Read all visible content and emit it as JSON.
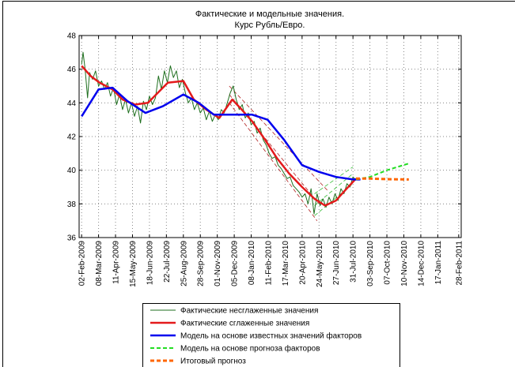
{
  "chart_data": {
    "type": "line",
    "title": [
      "Фактические и модельные значения.",
      "Курс Рубль/Евро."
    ],
    "xlim": [
      "2009-01-28",
      "2011-03-05"
    ],
    "xticks": [
      {
        "value": "2009-02-02",
        "label": "02-Feb-2009"
      },
      {
        "value": "2009-03-08",
        "label": "08-Mar-2009"
      },
      {
        "value": "2009-04-11",
        "label": "11-Apr-2009"
      },
      {
        "value": "2009-05-15",
        "label": "15-May-2009"
      },
      {
        "value": "2009-06-18",
        "label": "18-Jun-2009"
      },
      {
        "value": "2009-07-22",
        "label": "22-Jul-2009"
      },
      {
        "value": "2009-08-25",
        "label": "25-Aug-2009"
      },
      {
        "value": "2009-09-28",
        "label": "28-Sep-2009"
      },
      {
        "value": "2009-11-01",
        "label": "01-Nov-2009"
      },
      {
        "value": "2009-12-05",
        "label": "05-Dec-2009"
      },
      {
        "value": "2010-01-08",
        "label": "08-Jan-2010"
      },
      {
        "value": "2010-02-11",
        "label": "11-Feb-2010"
      },
      {
        "value": "2010-03-17",
        "label": "17-Mar-2010"
      },
      {
        "value": "2010-04-20",
        "label": "20-Apr-2010"
      },
      {
        "value": "2010-05-24",
        "label": "24-May-2010"
      },
      {
        "value": "2010-06-27",
        "label": "27-Jun-2010"
      },
      {
        "value": "2010-07-31",
        "label": "31-Jul-2010"
      },
      {
        "value": "2010-09-03",
        "label": "03-Sep-2010"
      },
      {
        "value": "2010-10-07",
        "label": "07-Oct-2010"
      },
      {
        "value": "2010-11-10",
        "label": "10-Nov-2010"
      },
      {
        "value": "2010-12-14",
        "label": "14-Dec-2010"
      },
      {
        "value": "2011-01-17",
        "label": "17-Jan-2011"
      },
      {
        "value": "2011-02-28",
        "label": "28-Feb-2011"
      }
    ],
    "ylim": [
      36,
      48
    ],
    "yticks": [
      36,
      38,
      40,
      42,
      44,
      46,
      48
    ],
    "grid": true,
    "legend": "bottom",
    "series": [
      {
        "name": "Фактические несглаженные значения",
        "color": "#1f6f1f",
        "linewidth": 1,
        "linestyle": "solid",
        "x": [
          "2009-02-02",
          "2009-02-05",
          "2009-02-09",
          "2009-02-14",
          "2009-02-18",
          "2009-02-24",
          "2009-03-02",
          "2009-03-08",
          "2009-03-14",
          "2009-03-20",
          "2009-03-26",
          "2009-04-01",
          "2009-04-07",
          "2009-04-13",
          "2009-04-19",
          "2009-04-25",
          "2009-05-01",
          "2009-05-07",
          "2009-05-13",
          "2009-05-19",
          "2009-05-25",
          "2009-05-31",
          "2009-06-06",
          "2009-06-12",
          "2009-06-18",
          "2009-06-24",
          "2009-06-30",
          "2009-07-06",
          "2009-07-12",
          "2009-07-18",
          "2009-07-24",
          "2009-07-30",
          "2009-08-05",
          "2009-08-11",
          "2009-08-17",
          "2009-08-23",
          "2009-08-29",
          "2009-09-04",
          "2009-09-10",
          "2009-09-16",
          "2009-09-22",
          "2009-09-28",
          "2009-10-04",
          "2009-10-10",
          "2009-10-16",
          "2009-10-22",
          "2009-10-28",
          "2009-11-03",
          "2009-11-09",
          "2009-11-15",
          "2009-11-21",
          "2009-11-27",
          "2009-12-03",
          "2009-12-09",
          "2009-12-15",
          "2009-12-21",
          "2009-12-27",
          "2010-01-02",
          "2010-01-08",
          "2010-01-14",
          "2010-01-20",
          "2010-01-26",
          "2010-02-01",
          "2010-02-07",
          "2010-02-13",
          "2010-02-19",
          "2010-02-25",
          "2010-03-03",
          "2010-03-09",
          "2010-03-15",
          "2010-03-21",
          "2010-03-27",
          "2010-04-02",
          "2010-04-08",
          "2010-04-14",
          "2010-04-20",
          "2010-04-26",
          "2010-05-02",
          "2010-05-08",
          "2010-05-14",
          "2010-05-20",
          "2010-05-26",
          "2010-06-01",
          "2010-06-07",
          "2010-06-13",
          "2010-06-19",
          "2010-06-25",
          "2010-07-01",
          "2010-07-07",
          "2010-07-13",
          "2010-07-19",
          "2010-07-25",
          "2010-07-31",
          "2010-08-06"
        ],
        "values": [
          46.3,
          47.0,
          46.0,
          44.3,
          45.8,
          45.4,
          45.9,
          45.0,
          45.3,
          44.8,
          45.2,
          44.4,
          44.9,
          43.9,
          44.5,
          43.6,
          44.2,
          43.4,
          44.0,
          43.2,
          43.8,
          42.8,
          44.1,
          43.6,
          44.4,
          43.9,
          44.3,
          45.6,
          44.8,
          45.9,
          45.2,
          46.2,
          45.5,
          45.9,
          44.9,
          45.4,
          44.6,
          44.0,
          44.3,
          43.6,
          44.0,
          43.4,
          43.7,
          43.0,
          43.5,
          42.9,
          43.3,
          43.0,
          43.6,
          43.4,
          44.0,
          44.6,
          45.0,
          44.2,
          43.6,
          43.9,
          43.1,
          43.4,
          42.7,
          42.9,
          42.2,
          42.5,
          41.8,
          41.5,
          41.0,
          40.7,
          40.8,
          40.3,
          40.1,
          39.8,
          39.5,
          39.6,
          39.1,
          38.9,
          38.7,
          38.4,
          38.6,
          38.0,
          38.9,
          37.4,
          38.6,
          37.9,
          38.3,
          37.8,
          38.4,
          38.0,
          38.6,
          38.2,
          38.9,
          38.6,
          39.2,
          39.0,
          39.6,
          39.4
        ]
      },
      {
        "name": "Фактические сглаженные значения",
        "color": "#e31a1c",
        "linewidth": 2.5,
        "linestyle": "solid",
        "x": [
          "2009-02-02",
          "2009-02-20",
          "2009-03-10",
          "2009-04-05",
          "2009-04-25",
          "2009-05-20",
          "2009-06-15",
          "2009-07-05",
          "2009-07-25",
          "2009-08-25",
          "2009-09-15",
          "2009-10-10",
          "2009-11-05",
          "2009-12-01",
          "2009-12-20",
          "2010-01-10",
          "2010-02-05",
          "2010-03-01",
          "2010-03-25",
          "2010-04-20",
          "2010-05-15",
          "2010-06-05",
          "2010-06-27",
          "2010-07-15",
          "2010-08-06"
        ],
        "values": [
          46.2,
          45.6,
          45.2,
          44.8,
          44.2,
          43.9,
          44.0,
          44.6,
          45.2,
          45.3,
          44.2,
          43.6,
          43.1,
          44.2,
          43.6,
          42.9,
          41.8,
          40.7,
          39.8,
          39.0,
          38.3,
          37.9,
          38.2,
          38.8,
          39.5
        ]
      },
      {
        "name": "Модель на основе известных значений факторов",
        "color": "#0000ee",
        "linewidth": 2.5,
        "linestyle": "solid",
        "x": [
          "2009-02-02",
          "2009-03-08",
          "2009-04-05",
          "2009-05-05",
          "2009-06-10",
          "2009-07-15",
          "2009-08-25",
          "2009-09-25",
          "2009-10-25",
          "2009-12-01",
          "2010-01-10",
          "2010-02-10",
          "2010-03-15",
          "2010-04-20",
          "2010-05-24",
          "2010-06-27",
          "2010-07-31",
          "2010-08-15"
        ],
        "values": [
          43.2,
          44.8,
          44.9,
          44.1,
          43.4,
          43.8,
          44.5,
          44.0,
          43.3,
          43.3,
          43.3,
          43.0,
          41.8,
          40.3,
          39.9,
          39.6,
          39.45,
          39.45
        ]
      },
      {
        "name": "Модель на основе прогноза факторов",
        "color": "#22dd22",
        "linewidth": 2,
        "linestyle": "dashed",
        "x": [
          "2010-08-06",
          "2010-09-03",
          "2010-10-07",
          "2010-11-20"
        ],
        "values": [
          39.45,
          39.6,
          40.0,
          40.4
        ]
      },
      {
        "name": "Итоговый прогноз",
        "color": "#ff6600",
        "linewidth": 3,
        "linestyle": "dashed",
        "x": [
          "2010-08-06",
          "2010-09-03",
          "2010-10-07",
          "2010-11-20"
        ],
        "values": [
          39.5,
          39.5,
          39.47,
          39.45
        ]
      }
    ],
    "trend_lines": [
      {
        "color": "#b22222",
        "x": [
          "2009-11-25",
          "2010-06-10"
        ],
        "values": [
          45.0,
          38.8
        ]
      },
      {
        "color": "#b22222",
        "x": [
          "2009-11-25",
          "2010-05-24"
        ],
        "values": [
          44.5,
          38.0
        ]
      },
      {
        "color": "#b22222",
        "x": [
          "2009-11-25",
          "2010-05-20"
        ],
        "values": [
          44.0,
          37.0
        ]
      },
      {
        "color": "#33bb33",
        "x": [
          "2010-05-15",
          "2010-07-31"
        ],
        "values": [
          38.6,
          40.2
        ]
      },
      {
        "color": "#33bb33",
        "x": [
          "2010-05-15",
          "2010-07-31"
        ],
        "values": [
          37.9,
          39.8
        ]
      },
      {
        "color": "#33bb33",
        "x": [
          "2010-05-15",
          "2010-07-31"
        ],
        "values": [
          37.3,
          39.2
        ]
      }
    ]
  }
}
